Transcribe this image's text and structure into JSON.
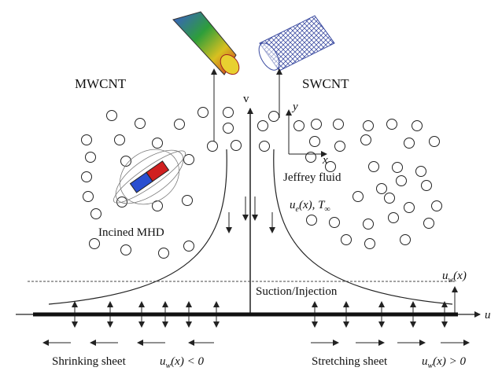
{
  "labels": {
    "mwcnt": "MWCNT",
    "swcnt": "SWCNT",
    "v": "v",
    "y": "y",
    "x": "x",
    "jeffrey": "Jeffrey fluid",
    "ue": {
      "u": "u",
      "sub": "e",
      "rest": "(x), T",
      "sub2": "∞"
    },
    "mhd": "Incined MHD",
    "suction": "Suction/Injection",
    "uw_right": {
      "u": "u",
      "sub": "w",
      "rest": "(x)"
    },
    "u_axis": "u",
    "shrinking": "Shrinking sheet",
    "uw_neg": {
      "u": "u",
      "sub": "w",
      "rest": "(x) < 0"
    },
    "stretching": "Stretching sheet",
    "uw_pos": {
      "u": "u",
      "sub": "w",
      "rest": "(x) > 0"
    }
  }
}
